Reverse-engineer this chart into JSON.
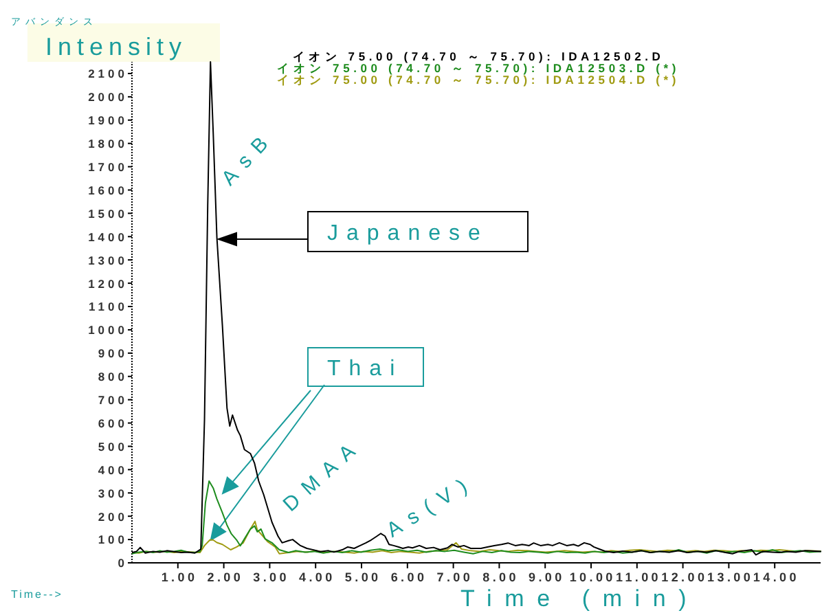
{
  "chart_data": {
    "type": "line",
    "xlabel": "Time (min)",
    "ylabel": "Intensity",
    "legend": "top",
    "xlim": [
      0,
      15
    ],
    "ylim": [
      0,
      2150
    ],
    "xticks": [
      {
        "value": 1,
        "label": "1.00"
      },
      {
        "value": 2,
        "label": "2.00"
      },
      {
        "value": 3,
        "label": "3.00"
      },
      {
        "value": 4,
        "label": "4.00"
      },
      {
        "value": 5,
        "label": "5.00"
      },
      {
        "value": 6,
        "label": "6.00"
      },
      {
        "value": 7,
        "label": "7.00"
      },
      {
        "value": 8,
        "label": "8.00"
      },
      {
        "value": 9,
        "label": "9.00"
      },
      {
        "value": 10,
        "label": "10.00"
      },
      {
        "value": 11,
        "label": "11.00"
      },
      {
        "value": 12,
        "label": "12.00"
      },
      {
        "value": 13,
        "label": "13.00"
      },
      {
        "value": 14,
        "label": "14.00"
      }
    ],
    "yticks": [
      0,
      100,
      200,
      300,
      400,
      500,
      600,
      700,
      800,
      900,
      1000,
      1100,
      1200,
      1300,
      1400,
      1500,
      1600,
      1700,
      1800,
      1900,
      2000,
      2100
    ],
    "series": [
      {
        "name": "イオン 75.00 (74.70 ～ 75.70): IDA12502.D",
        "color": "#000000",
        "x": [
          0.0,
          0.1,
          0.18,
          0.29,
          0.46,
          0.61,
          0.76,
          0.92,
          1.07,
          1.22,
          1.37,
          1.5,
          1.58,
          1.65,
          1.71,
          1.77,
          1.85,
          1.97,
          2.07,
          2.13,
          2.19,
          2.3,
          2.36,
          2.45,
          2.58,
          2.67,
          2.76,
          2.87,
          2.96,
          3.05,
          3.18,
          3.27,
          3.41,
          3.5,
          3.66,
          3.81,
          3.97,
          4.1,
          4.28,
          4.4,
          4.58,
          4.7,
          4.84,
          4.97,
          5.09,
          5.21,
          5.34,
          5.42,
          5.51,
          5.6,
          5.7,
          5.81,
          5.9,
          6.02,
          6.11,
          6.26,
          6.41,
          6.57,
          6.71,
          6.87,
          6.97,
          7.1,
          7.23,
          7.38,
          7.6,
          7.74,
          7.89,
          8.05,
          8.19,
          8.35,
          8.5,
          8.65,
          8.75,
          8.9,
          9.06,
          9.16,
          9.31,
          9.47,
          9.62,
          9.72,
          9.85,
          9.98,
          10.06,
          10.18,
          10.3,
          10.49,
          10.69,
          10.89,
          11.1,
          11.29,
          11.5,
          11.71,
          11.91,
          12.09,
          12.32,
          12.52,
          12.72,
          12.93,
          13.08,
          13.23,
          13.5,
          13.59,
          13.74,
          13.95,
          14.1,
          14.25,
          14.46,
          14.66,
          14.88,
          15.0
        ],
        "values": [
          44,
          49,
          66,
          42,
          49,
          46,
          52,
          48,
          44,
          46,
          42,
          59,
          615,
          1533,
          2150,
          1844,
          1395,
          1018,
          664,
          587,
          634,
          569,
          546,
          486,
          469,
          427,
          351,
          292,
          233,
          174,
          115,
          86,
          95,
          100,
          75,
          62,
          55,
          48,
          52,
          46,
          56,
          68,
          62,
          74,
          85,
          98,
          115,
          126,
          115,
          79,
          74,
          68,
          62,
          68,
          64,
          74,
          62,
          66,
          56,
          64,
          79,
          68,
          74,
          62,
          62,
          68,
          74,
          79,
          85,
          74,
          79,
          74,
          85,
          74,
          79,
          74,
          86,
          74,
          79,
          72,
          86,
          79,
          68,
          59,
          50,
          44,
          50,
          46,
          52,
          44,
          49,
          46,
          52,
          44,
          49,
          46,
          52,
          44,
          39,
          49,
          56,
          34,
          49,
          46,
          44,
          49,
          46,
          52,
          50,
          49
        ]
      },
      {
        "name": "イオン 75.00 (74.70 ～ 75.70): IDA12503.D (*)",
        "color": "#1e8c1e",
        "x": [
          0.0,
          0.15,
          0.31,
          0.46,
          0.61,
          0.76,
          0.92,
          1.07,
          1.22,
          1.37,
          1.48,
          1.53,
          1.6,
          1.68,
          1.77,
          1.85,
          1.97,
          2.07,
          2.16,
          2.28,
          2.36,
          2.45,
          2.58,
          2.67,
          2.73,
          2.81,
          2.9,
          3.05,
          3.21,
          3.41,
          3.56,
          3.77,
          3.97,
          4.17,
          4.38,
          4.58,
          4.78,
          4.99,
          5.19,
          5.4,
          5.6,
          5.8,
          6.01,
          6.21,
          6.41,
          6.62,
          6.82,
          7.02,
          7.23,
          7.43,
          7.64,
          7.84,
          8.04,
          8.25,
          8.45,
          8.65,
          8.86,
          9.06,
          9.26,
          9.47,
          9.67,
          9.87,
          10.08,
          10.28,
          10.49,
          10.69,
          10.89,
          11.1,
          11.3,
          11.5,
          11.71,
          11.91,
          12.11,
          12.32,
          12.52,
          12.72,
          12.93,
          13.13,
          13.34,
          13.54,
          13.74,
          13.95,
          14.15,
          14.35,
          14.56,
          14.76,
          15.0
        ],
        "values": [
          39,
          46,
          49,
          44,
          52,
          46,
          49,
          54,
          46,
          44,
          49,
          74,
          258,
          351,
          321,
          274,
          215,
          162,
          126,
          98,
          73,
          103,
          145,
          158,
          133,
          145,
          103,
          86,
          56,
          44,
          52,
          46,
          49,
          42,
          49,
          44,
          52,
          46,
          54,
          59,
          52,
          56,
          49,
          54,
          46,
          52,
          49,
          54,
          46,
          39,
          49,
          44,
          52,
          46,
          44,
          49,
          46,
          42,
          49,
          44,
          46,
          42,
          49,
          44,
          49,
          42,
          46,
          52,
          44,
          49,
          46,
          56,
          44,
          49,
          42,
          52,
          46,
          49,
          44,
          52,
          46,
          56,
          44,
          49,
          52,
          46,
          49
        ]
      },
      {
        "name": "イオン 75.00 (74.70 ～ 75.70): IDA12504.D (*)",
        "color": "#a09b12",
        "x": [
          0.0,
          0.15,
          0.31,
          0.51,
          0.71,
          0.92,
          1.12,
          1.32,
          1.48,
          1.58,
          1.7,
          1.77,
          1.85,
          1.97,
          2.15,
          2.28,
          2.42,
          2.58,
          2.68,
          2.73,
          2.85,
          2.96,
          3.12,
          3.21,
          3.41,
          3.61,
          3.82,
          4.02,
          4.22,
          4.43,
          4.63,
          4.84,
          5.04,
          5.24,
          5.45,
          5.65,
          5.85,
          6.06,
          6.26,
          6.46,
          6.67,
          6.87,
          7.06,
          7.18,
          7.38,
          7.58,
          7.79,
          7.99,
          8.19,
          8.4,
          8.6,
          8.81,
          9.01,
          9.21,
          9.42,
          9.62,
          9.82,
          10.03,
          10.23,
          10.43,
          10.64,
          10.84,
          11.05,
          11.25,
          11.45,
          11.66,
          11.86,
          12.06,
          12.27,
          12.47,
          12.67,
          12.88,
          13.08,
          13.28,
          13.49,
          13.69,
          13.9,
          14.1,
          14.3,
          14.51,
          14.71,
          15.0
        ],
        "values": [
          44,
          42,
          49,
          46,
          49,
          44,
          49,
          46,
          44,
          74,
          99,
          98,
          87,
          79,
          56,
          68,
          85,
          145,
          178,
          141,
          115,
          90,
          68,
          39,
          44,
          49,
          46,
          52,
          44,
          49,
          46,
          42,
          49,
          46,
          52,
          44,
          49,
          46,
          42,
          49,
          52,
          56,
          86,
          59,
          52,
          49,
          56,
          52,
          49,
          54,
          52,
          49,
          46,
          49,
          52,
          49,
          46,
          49,
          46,
          52,
          49,
          54,
          56,
          52,
          49,
          54,
          52,
          49,
          52,
          49,
          54,
          52,
          49,
          52,
          49,
          54,
          52,
          56,
          52,
          49,
          52,
          50
        ]
      }
    ],
    "annotations": [
      "アバンダンス",
      "Time-->",
      "Japanese",
      {
        "text": "Thai",
        "x": 1.72,
        "y": 99
      },
      "AsB",
      "DMAA",
      "As(V)"
    ]
  }
}
